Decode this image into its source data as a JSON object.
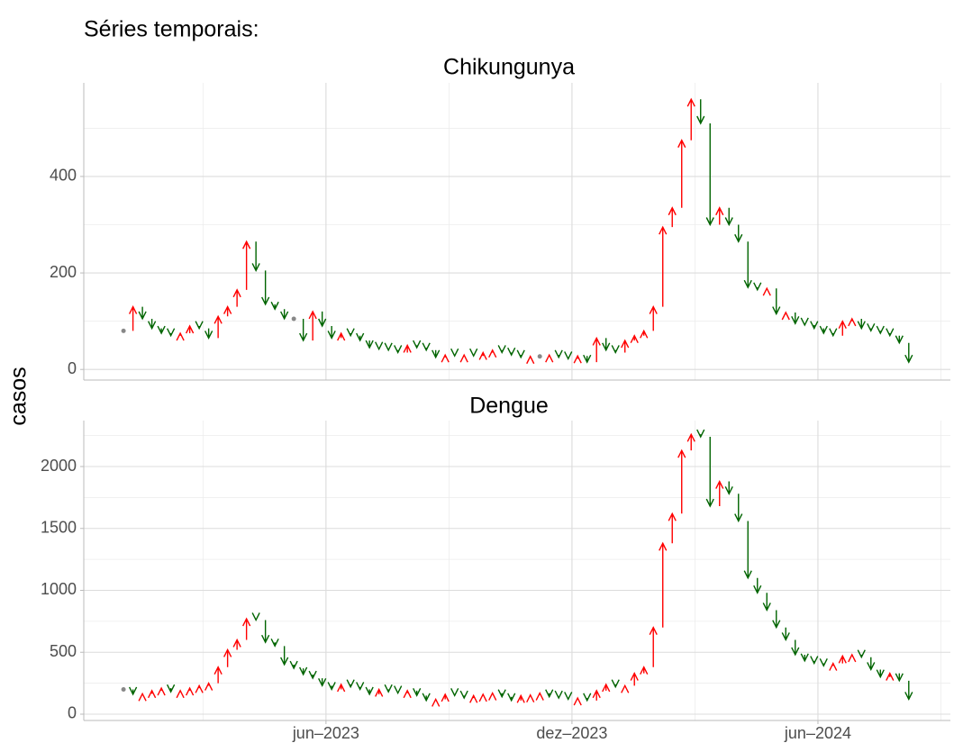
{
  "title": "Séries temporais:",
  "y_label": "casos",
  "chart_data": [
    {
      "type": "arrow",
      "title": "Chikungunya",
      "x": [
        0,
        1,
        2,
        3,
        4,
        5,
        6,
        7,
        8,
        9,
        10,
        11,
        12,
        13,
        14,
        15,
        16,
        17,
        18,
        19,
        20,
        21,
        22,
        23,
        24,
        25,
        26,
        27,
        28,
        29,
        30,
        31,
        32,
        33,
        34,
        35,
        36,
        37,
        38,
        39,
        40,
        41,
        42,
        43,
        44,
        45,
        46,
        47,
        48,
        49,
        50,
        51,
        52,
        53,
        54,
        55,
        56,
        57,
        58,
        59,
        60,
        61,
        62,
        63,
        64,
        65,
        66,
        67,
        68,
        69,
        70,
        71,
        72,
        73,
        74,
        75,
        76,
        77,
        78,
        79,
        80,
        81,
        82,
        83
      ],
      "values": [
        80,
        130,
        105,
        85,
        75,
        70,
        75,
        90,
        85,
        65,
        110,
        130,
        165,
        265,
        205,
        135,
        125,
        105,
        105,
        60,
        120,
        90,
        65,
        75,
        70,
        60,
        45,
        42,
        40,
        35,
        50,
        45,
        40,
        25,
        30,
        28,
        30,
        28,
        35,
        40,
        35,
        30,
        25,
        27,
        27,
        30,
        25,
        22,
        28,
        15,
        65,
        40,
        35,
        60,
        70,
        80,
        130,
        295,
        335,
        475,
        560,
        510,
        300,
        335,
        300,
        265,
        170,
        165,
        168,
        115,
        118,
        95,
        92,
        85,
        75,
        70,
        100,
        105,
        85,
        80,
        75,
        70,
        55,
        15
      ],
      "colors": {
        "up": "#ff0000",
        "down": "#006400",
        "equal": "#888888"
      },
      "xlim": [
        -4.2,
        87.4
      ],
      "xticks": [
        21.4,
        47.4,
        73.4
      ],
      "xminorticks": [
        8.4,
        34.4,
        60.4,
        86.4
      ],
      "ylim": [
        -22,
        594
      ],
      "yticks": [
        0,
        200,
        400
      ],
      "yminorticks": [
        100,
        300,
        500
      ],
      "grid": true
    },
    {
      "type": "arrow",
      "title": "Dengue",
      "x": [
        0,
        1,
        2,
        3,
        4,
        5,
        6,
        7,
        8,
        9,
        10,
        11,
        12,
        13,
        14,
        15,
        16,
        17,
        18,
        19,
        20,
        21,
        22,
        23,
        24,
        25,
        26,
        27,
        28,
        29,
        30,
        31,
        32,
        33,
        34,
        35,
        36,
        37,
        38,
        39,
        40,
        41,
        42,
        43,
        44,
        45,
        46,
        47,
        48,
        49,
        50,
        51,
        52,
        53,
        54,
        55,
        56,
        57,
        58,
        59,
        60,
        61,
        62,
        63,
        64,
        65,
        66,
        67,
        68,
        69,
        70,
        71,
        72,
        73,
        74,
        75,
        76,
        77,
        78,
        79,
        80,
        81,
        82,
        83
      ],
      "values": [
        200,
        160,
        165,
        190,
        210,
        180,
        190,
        210,
        230,
        250,
        380,
        520,
        600,
        770,
        760,
        580,
        550,
        400,
        370,
        320,
        290,
        230,
        200,
        240,
        220,
        200,
        160,
        200,
        180,
        170,
        190,
        150,
        110,
        120,
        160,
        150,
        130,
        150,
        160,
        170,
        140,
        110,
        150,
        155,
        170,
        140,
        130,
        120,
        130,
        110,
        190,
        240,
        220,
        230,
        330,
        380,
        700,
        1380,
        1620,
        2130,
        2260,
        2240,
        1680,
        1880,
        1780,
        1560,
        1100,
        980,
        840,
        700,
        600,
        480,
        430,
        410,
        390,
        410,
        470,
        480,
        460,
        360,
        300,
        330,
        270,
        120
      ],
      "colors": {
        "up": "#ff0000",
        "down": "#006400",
        "equal": "#888888"
      },
      "xlim": [
        -4.2,
        87.4
      ],
      "xticks": [
        {
          "value": 21.4,
          "label": "jun–2023"
        },
        {
          "value": 47.4,
          "label": "dez–2023"
        },
        {
          "value": 73.4,
          "label": "jun–2024"
        }
      ],
      "xminorticks": [
        8.4,
        34.4,
        60.4,
        86.4
      ],
      "ylim": [
        -51,
        2371
      ],
      "yticks": [
        0,
        500,
        1000,
        1500,
        2000
      ],
      "yminorticks": [
        250,
        750,
        1250,
        1750,
        2250
      ],
      "grid": true
    }
  ]
}
